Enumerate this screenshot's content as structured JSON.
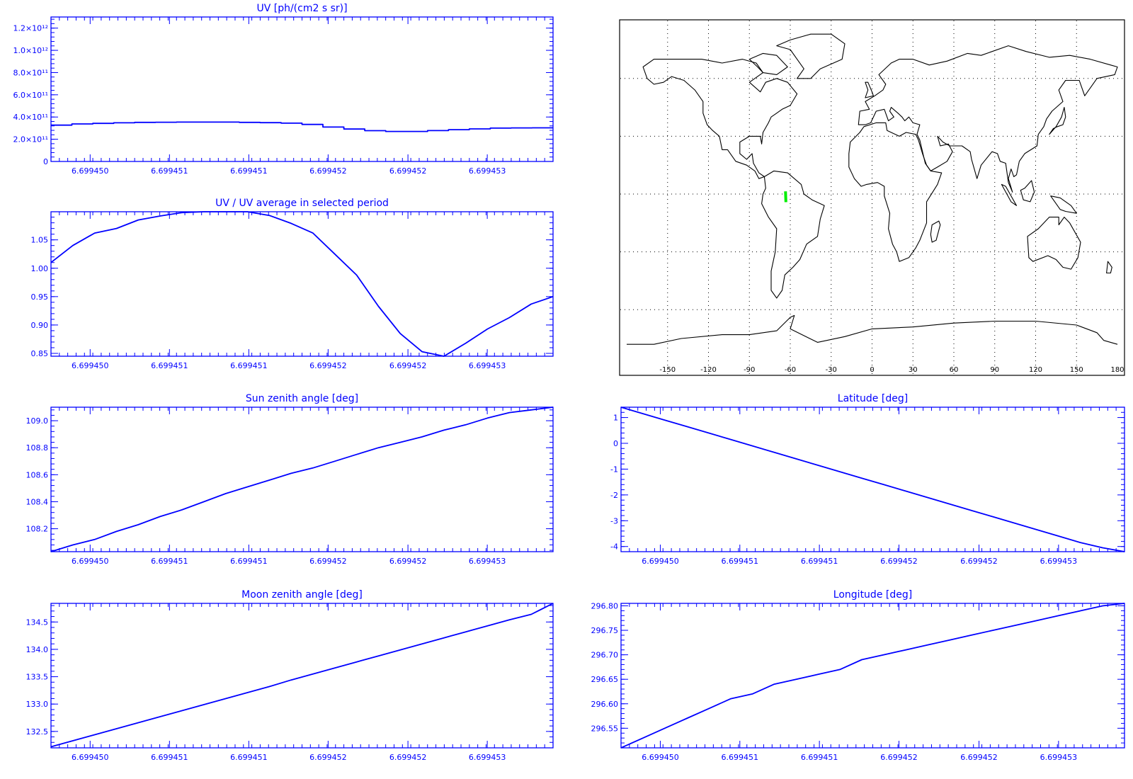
{
  "chart_data": [
    {
      "id": "uv",
      "type": "line",
      "title": "UV [ph/(cm2 s sr)]",
      "xlabel": "",
      "ylabel": "",
      "x_tick_labels": [
        "6.699450",
        "6.699451",
        "6.699451",
        "6.699452",
        "6.699452",
        "6.699453"
      ],
      "y_tick_labels": [
        "0",
        "2.0×10¹¹",
        "4.0×10¹¹",
        "6.0×10¹¹",
        "8.0×10¹¹",
        "1.0×10¹²",
        "1.2×10¹²"
      ],
      "y_ticks": [
        0,
        200000000000.0,
        400000000000.0,
        600000000000.0,
        800000000000.0,
        1000000000000.0,
        1200000000000.0
      ],
      "ylim": [
        0,
        1300000000000.0
      ],
      "step": true,
      "values": [
        327000000000.0,
        338000000000.0,
        343000000000.0,
        348000000000.0,
        352000000000.0,
        353000000000.0,
        354000000000.0,
        354000000000.0,
        354000000000.0,
        352000000000.0,
        349000000000.0,
        345000000000.0,
        333000000000.0,
        310000000000.0,
        292000000000.0,
        277000000000.0,
        270000000000.0,
        270000000000.0,
        278000000000.0,
        286000000000.0,
        293000000000.0,
        300000000000.0,
        302000000000.0,
        303000000000.0
      ]
    },
    {
      "id": "uv-ratio",
      "type": "line",
      "title": "UV / UV average in selected period",
      "xlabel": "",
      "ylabel": "",
      "x_tick_labels": [
        "6.699450",
        "6.699451",
        "6.699451",
        "6.699452",
        "6.699452",
        "6.699453"
      ],
      "y_tick_labels": [
        "0.85",
        "0.90",
        "0.95",
        "1.00",
        "1.05"
      ],
      "y_ticks": [
        0.85,
        0.9,
        0.95,
        1.0,
        1.05
      ],
      "ylim": [
        0.845,
        1.0995
      ],
      "values": [
        1.01,
        1.04,
        1.062,
        1.07,
        1.085,
        1.092,
        1.098,
        1.1,
        1.1,
        1.1,
        1.093,
        1.079,
        1.062,
        1.025,
        0.988,
        0.933,
        0.885,
        0.853,
        0.845,
        0.868,
        0.893,
        0.913,
        0.937,
        0.95
      ]
    },
    {
      "id": "sun-zenith",
      "type": "line",
      "title": "Sun zenith angle [deg]",
      "xlabel": "",
      "ylabel": "",
      "x_tick_labels": [
        "6.699450",
        "6.699451",
        "6.699451",
        "6.699452",
        "6.699452",
        "6.699453"
      ],
      "y_tick_labels": [
        "108.2",
        "108.4",
        "108.6",
        "108.8",
        "109.0"
      ],
      "y_ticks": [
        108.2,
        108.4,
        108.6,
        108.8,
        109.0
      ],
      "ylim": [
        108.03,
        109.1
      ],
      "values": [
        108.03,
        108.08,
        108.12,
        108.18,
        108.23,
        108.29,
        108.34,
        108.4,
        108.46,
        108.51,
        108.56,
        108.61,
        108.65,
        108.7,
        108.75,
        108.8,
        108.84,
        108.88,
        108.93,
        108.97,
        109.02,
        109.06,
        109.08,
        109.1
      ]
    },
    {
      "id": "moon-zenith",
      "type": "line",
      "title": "Moon zenith angle [deg]",
      "xlabel": "",
      "ylabel": "",
      "x_tick_labels": [
        "6.699450",
        "6.699451",
        "6.699451",
        "6.699452",
        "6.699452",
        "6.699453"
      ],
      "y_tick_labels": [
        "132.5",
        "133.0",
        "133.5",
        "134.0",
        "134.5"
      ],
      "y_ticks": [
        132.5,
        133.0,
        133.5,
        134.0,
        134.5
      ],
      "ylim": [
        132.2,
        134.84
      ],
      "values": [
        132.22,
        132.33,
        132.44,
        132.55,
        132.66,
        132.77,
        132.88,
        132.99,
        133.1,
        133.21,
        133.32,
        133.44,
        133.55,
        133.66,
        133.77,
        133.88,
        133.99,
        134.1,
        134.21,
        134.32,
        134.43,
        134.54,
        134.64,
        134.84
      ]
    },
    {
      "id": "latitude",
      "type": "line",
      "title": "Latitude [deg]",
      "xlabel": "",
      "ylabel": "",
      "x_tick_labels": [
        "6.699450",
        "6.699451",
        "6.699451",
        "6.699452",
        "6.699452",
        "6.699453"
      ],
      "y_tick_labels": [
        "-4",
        "-3",
        "-2",
        "-1",
        "0",
        "1"
      ],
      "y_ticks": [
        -4,
        -3,
        -2,
        -1,
        0,
        1
      ],
      "ylim": [
        -4.2,
        1.4
      ],
      "values": [
        1.4,
        1.15,
        0.9,
        0.65,
        0.4,
        0.15,
        -0.1,
        -0.35,
        -0.6,
        -0.85,
        -1.1,
        -1.35,
        -1.6,
        -1.85,
        -2.1,
        -2.35,
        -2.6,
        -2.85,
        -3.1,
        -3.35,
        -3.6,
        -3.85,
        -4.05,
        -4.2
      ]
    },
    {
      "id": "longitude",
      "type": "line",
      "title": "Longitude [deg]",
      "xlabel": "",
      "ylabel": "",
      "x_tick_labels": [
        "6.699450",
        "6.699451",
        "6.699451",
        "6.699452",
        "6.699452",
        "6.699453"
      ],
      "y_tick_labels": [
        "296.55",
        "296.60",
        "296.65",
        "296.70",
        "296.75",
        "296.80"
      ],
      "y_ticks": [
        296.55,
        296.6,
        296.65,
        296.7,
        296.75,
        296.8
      ],
      "ylim": [
        296.51,
        296.805
      ],
      "values": [
        296.51,
        296.53,
        296.55,
        296.57,
        296.59,
        296.61,
        296.62,
        296.64,
        296.65,
        296.66,
        296.67,
        296.69,
        296.7,
        296.71,
        296.72,
        296.73,
        296.74,
        296.75,
        296.76,
        296.77,
        296.78,
        296.79,
        296.8,
        296.805
      ]
    }
  ],
  "map": {
    "lon_tick_labels": [
      "-150",
      "-120",
      "-90",
      "-60",
      "-30",
      "0",
      "30",
      "60",
      "90",
      "120",
      "150",
      "180"
    ],
    "lon_ticks": [
      -150,
      -120,
      -90,
      -60,
      -30,
      0,
      30,
      60,
      90,
      120,
      150,
      180
    ],
    "lat_gridlines": [
      -60,
      -30,
      0,
      30,
      60
    ],
    "track_color": "#00ee00",
    "track": {
      "lon_start": -63.5,
      "lon_end": -63.2,
      "lat_start": 1.4,
      "lat_end": -4.2
    },
    "coastline_color": "#000000",
    "grid_style": "dotted"
  },
  "colors": {
    "axis": "#0000ff",
    "series": "#0000ff",
    "background": "#ffffff"
  }
}
